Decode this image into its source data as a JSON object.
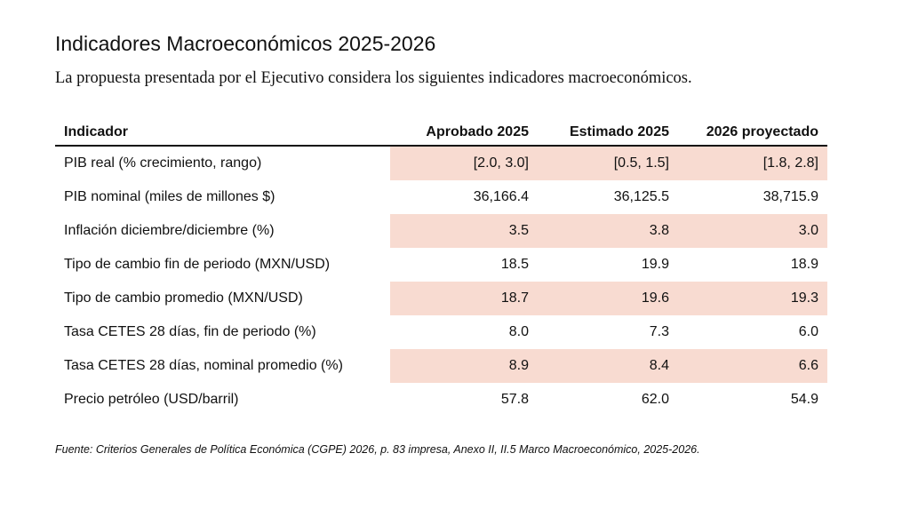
{
  "title": "Indicadores Macroeconómicos 2025-2026",
  "subtitle": "La propuesta presentada por el Ejecutivo considera los siguientes indicadores macroeconómicos.",
  "table": {
    "headers": [
      "Indicador",
      "Aprobado 2025",
      "Estimado 2025",
      "2026 proyectado"
    ],
    "rows": [
      [
        "PIB real (% crecimiento, rango)",
        "[2.0, 3.0]",
        "[0.5, 1.5]",
        "[1.8, 2.8]"
      ],
      [
        "PIB nominal (miles de millones $)",
        "36,166.4",
        "36,125.5",
        "38,715.9"
      ],
      [
        "Inflación diciembre/diciembre (%)",
        "3.5",
        "3.8",
        "3.0"
      ],
      [
        "Tipo de cambio fin de periodo (MXN/USD)",
        "18.5",
        "19.9",
        "18.9"
      ],
      [
        "Tipo de cambio promedio (MXN/USD)",
        "18.7",
        "19.6",
        "19.3"
      ],
      [
        "Tasa CETES 28 días, fin de periodo (%)",
        "8.0",
        "7.3",
        "6.0"
      ],
      [
        "Tasa CETES 28 días, nominal promedio (%)",
        "8.9",
        "8.4",
        "6.6"
      ],
      [
        "Precio petróleo (USD/barril)",
        "57.8",
        "62.0",
        "54.9"
      ]
    ],
    "shaded_color": "#f8dbd1"
  },
  "source": "Fuente: Criterios Generales de Política Económica (CGPE) 2026, p. 83 impresa, Anexo II, II.5 Marco Macroeconómico, 2025-2026."
}
